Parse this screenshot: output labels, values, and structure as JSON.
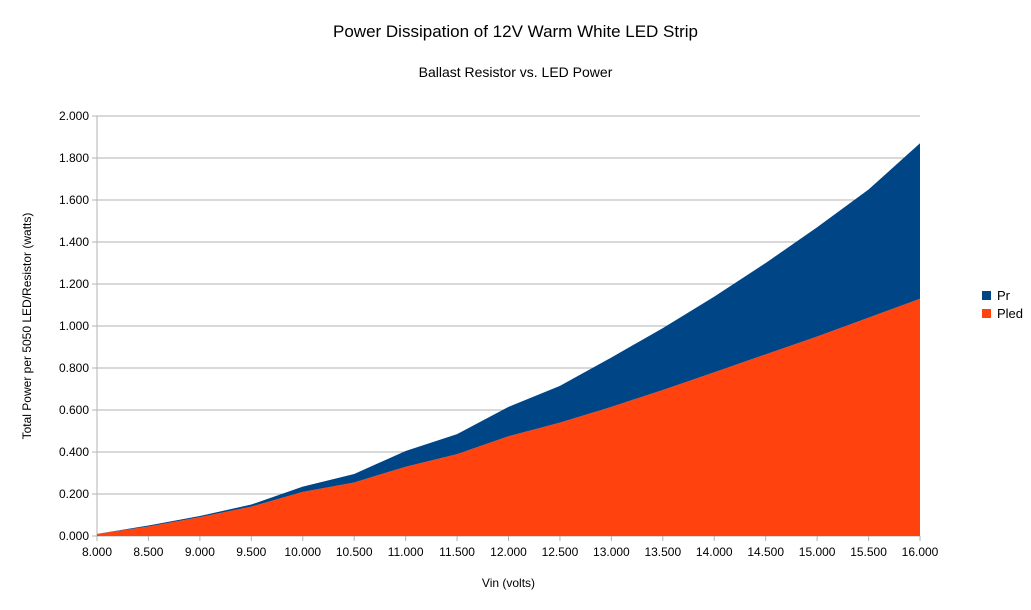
{
  "chart_data": {
    "type": "area",
    "stacked": true,
    "title": "Power Dissipation of 12V Warm White LED Strip",
    "subtitle": "Ballast Resistor vs. LED Power",
    "xlabel": "Vin (volts)",
    "ylabel": "Total Power per 5050 LED/Resistor (watts)",
    "xlim": [
      8.0,
      16.0
    ],
    "ylim": [
      0.0,
      2.0
    ],
    "x_ticks": [
      "8.000",
      "8.500",
      "9.000",
      "9.500",
      "10.000",
      "10.500",
      "11.000",
      "11.500",
      "12.000",
      "12.500",
      "13.000",
      "13.500",
      "14.000",
      "14.500",
      "15.000",
      "15.500",
      "16.000"
    ],
    "y_ticks": [
      "0.000",
      "0.200",
      "0.400",
      "0.600",
      "0.800",
      "1.000",
      "1.200",
      "1.400",
      "1.600",
      "1.800",
      "2.000"
    ],
    "legend_position": "right",
    "x": [
      8.0,
      8.5,
      9.0,
      9.5,
      10.0,
      10.5,
      11.0,
      11.5,
      12.0,
      12.5,
      13.0,
      13.5,
      14.0,
      14.5,
      15.0,
      15.5,
      16.0
    ],
    "series": [
      {
        "name": "Pled",
        "color": "#ff420e",
        "values": [
          0.01,
          0.045,
          0.09,
          0.14,
          0.21,
          0.255,
          0.33,
          0.39,
          0.475,
          0.54,
          0.615,
          0.695,
          0.78,
          0.865,
          0.95,
          1.04,
          1.13
        ]
      },
      {
        "name": "Pr",
        "color": "#004586",
        "values": [
          0.0,
          0.005,
          0.005,
          0.01,
          0.025,
          0.04,
          0.075,
          0.095,
          0.14,
          0.175,
          0.235,
          0.295,
          0.36,
          0.435,
          0.52,
          0.61,
          0.74
        ]
      }
    ]
  }
}
